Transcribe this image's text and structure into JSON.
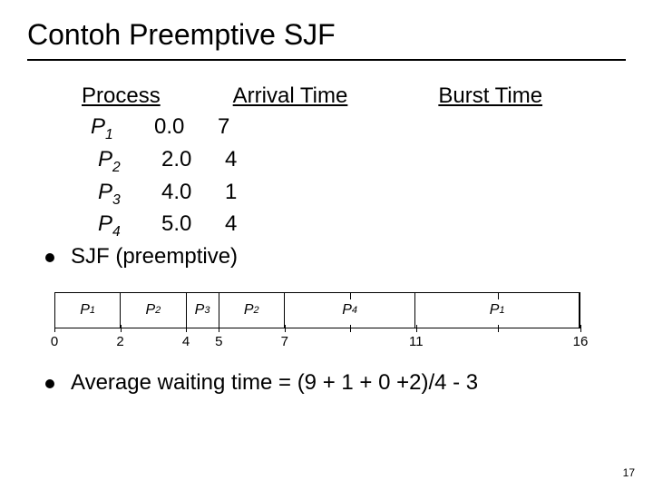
{
  "title": "Contoh Preemptive SJF",
  "headers": {
    "process": "Process",
    "arrival": "Arrival  Time",
    "burst": "Burst Time"
  },
  "rows": [
    {
      "name": "P",
      "sub": "1",
      "arrival": "0.0",
      "burst": "7",
      "indent": 0
    },
    {
      "name": "P",
      "sub": "2",
      "arrival": "2.0",
      "burst": "4",
      "indent": 8
    },
    {
      "name": "P",
      "sub": "3",
      "arrival": "4.0",
      "burst": "1",
      "indent": 8
    },
    {
      "name": "P",
      "sub": "4",
      "arrival": "5.0",
      "burst": "4",
      "indent": 8
    }
  ],
  "bullet1": "SJF (preemptive)",
  "gantt": {
    "total": 16,
    "segments": [
      {
        "label": "P",
        "sub": "1",
        "from": 0,
        "to": 2
      },
      {
        "label": "P",
        "sub": "2",
        "from": 2,
        "to": 4
      },
      {
        "label": "P",
        "sub": "3",
        "from": 4,
        "to": 5
      },
      {
        "label": "P",
        "sub": "2",
        "from": 5,
        "to": 7
      },
      {
        "label": "P",
        "sub": "4",
        "from": 7,
        "to": 11
      },
      {
        "label": "P",
        "sub": "1",
        "from": 11,
        "to": 16
      }
    ],
    "ticks": [
      0,
      2,
      4,
      5,
      7,
      11,
      16
    ],
    "extra_ticks_bottom": [
      9,
      13.5
    ],
    "extra_ticks_top": [
      9,
      13.5
    ]
  },
  "avg_label": "Average waiting time = (9 + 1 + 0 +2)/4 - 3",
  "pagenum": "17",
  "colors": {
    "text": "#000000",
    "bg": "#ffffff"
  }
}
